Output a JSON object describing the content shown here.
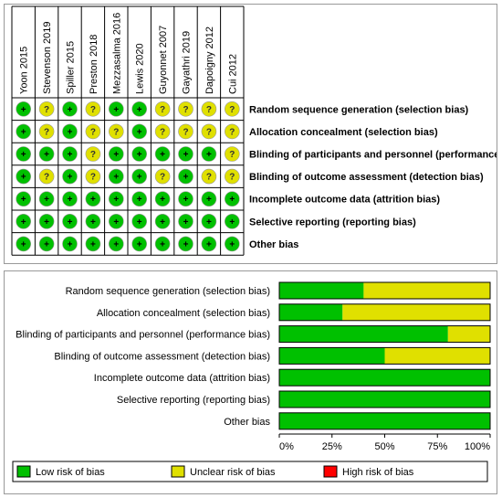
{
  "risk_summary": {
    "studies": [
      "Yoon 2015",
      "Stevenson 2019",
      "Spiller 2015",
      "Preston 2018",
      "Mezzasalma 2016",
      "Lewis 2020",
      "Guyonnet 2007",
      "Gayathri 2019",
      "Dapoigny 2012",
      "Cui 2012"
    ],
    "domains": [
      "Random sequence generation (selection bias)",
      "Allocation concealment (selection bias)",
      "Blinding of participants and personnel (performance bias)",
      "Blinding of outcome assessment (detection bias)",
      "Incomplete outcome data (attrition bias)",
      "Selective reporting (reporting bias)",
      "Other bias"
    ],
    "judgements": [
      [
        "+",
        "?",
        "+",
        "?",
        "+",
        "+",
        "?",
        "?",
        "?",
        "?"
      ],
      [
        "+",
        "?",
        "+",
        "?",
        "?",
        "+",
        "?",
        "?",
        "?",
        "?"
      ],
      [
        "+",
        "+",
        "+",
        "?",
        "+",
        "+",
        "+",
        "+",
        "+",
        "?"
      ],
      [
        "+",
        "?",
        "+",
        "?",
        "+",
        "+",
        "?",
        "+",
        "?",
        "?"
      ],
      [
        "+",
        "+",
        "+",
        "+",
        "+",
        "+",
        "+",
        "+",
        "+",
        "+"
      ],
      [
        "+",
        "+",
        "+",
        "+",
        "+",
        "+",
        "+",
        "+",
        "+",
        "+"
      ],
      [
        "+",
        "+",
        "+",
        "+",
        "+",
        "+",
        "+",
        "+",
        "+",
        "+"
      ]
    ],
    "symbols": {
      "low": "+",
      "unclear": "?"
    }
  },
  "chart_data": {
    "type": "bar",
    "orientation": "horizontal",
    "stacked": true,
    "categories": [
      "Random sequence generation (selection bias)",
      "Allocation concealment (selection bias)",
      "Blinding of participants and personnel (performance bias)",
      "Blinding of outcome assessment (detection bias)",
      "Incomplete outcome data (attrition bias)",
      "Selective reporting (reporting bias)",
      "Other bias"
    ],
    "series": [
      {
        "name": "Low risk of bias",
        "values": [
          40,
          30,
          80,
          50,
          100,
          100,
          100
        ],
        "color": "#00c000"
      },
      {
        "name": "Unclear risk of bias",
        "values": [
          60,
          70,
          20,
          50,
          0,
          0,
          0
        ],
        "color": "#e0e000"
      },
      {
        "name": "High risk of bias",
        "values": [
          0,
          0,
          0,
          0,
          0,
          0,
          0
        ],
        "color": "#ff0000"
      }
    ],
    "xlim": [
      0,
      100
    ],
    "xticks": [
      "0%",
      "25%",
      "50%",
      "75%",
      "100%"
    ],
    "legend": "bottom",
    "grid": false
  },
  "colors": {
    "low": "#00c000",
    "unclear": "#e0e000",
    "high": "#ff0000",
    "border": "#000000"
  }
}
